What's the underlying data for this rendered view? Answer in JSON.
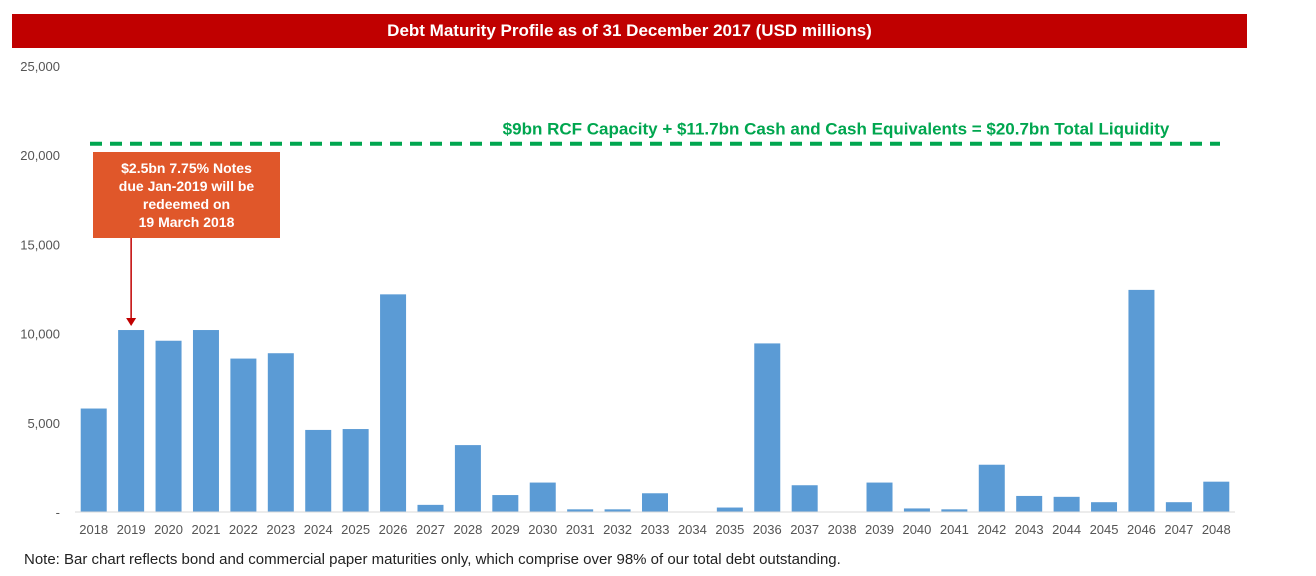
{
  "title": "Debt Maturity Profile as of 31 December 2017 (USD millions)",
  "liquidity_label": "$9bn RCF Capacity + $11.7bn Cash and Cash Equivalents = $20.7bn Total Liquidity",
  "callout_lines": [
    "$2.5bn 7.75% Notes",
    "due Jan-2019 will be",
    "redeemed on",
    "19 March 2018"
  ],
  "note": "Note:  Bar chart reflects bond and commercial paper maturities only, which comprise over 98% of our total debt outstanding.",
  "colors": {
    "bar": "#5b9bd5",
    "title_bg": "#c00000",
    "liquidity": "#00a64f",
    "callout_bg": "#e0572a",
    "arrow": "#c00000"
  },
  "chart_data": {
    "type": "bar",
    "title": "Debt Maturity Profile as of 31 December 2017 (USD millions)",
    "categories": [
      "2018",
      "2019",
      "2020",
      "2021",
      "2022",
      "2023",
      "2024",
      "2025",
      "2026",
      "2027",
      "2028",
      "2029",
      "2030",
      "2031",
      "2032",
      "2033",
      "2034",
      "2035",
      "2036",
      "2037",
      "2038",
      "2039",
      "2040",
      "2041",
      "2042",
      "2043",
      "2044",
      "2045",
      "2046",
      "2047",
      "2048"
    ],
    "values": [
      5800,
      10200,
      9600,
      10200,
      8600,
      8900,
      4600,
      4650,
      12200,
      400,
      3750,
      950,
      1650,
      150,
      150,
      1050,
      0,
      250,
      9450,
      1500,
      0,
      1650,
      200,
      150,
      2650,
      900,
      850,
      550,
      12450,
      550,
      1700
    ],
    "yticks": [
      {
        "value": 0,
        "label": "-"
      },
      {
        "value": 5000,
        "label": "5,000"
      },
      {
        "value": 10000,
        "label": "10,000"
      },
      {
        "value": 15000,
        "label": "15,000"
      },
      {
        "value": 20000,
        "label": "20,000"
      },
      {
        "value": 25000,
        "label": "25,000"
      }
    ],
    "ylim": [
      0,
      25000
    ],
    "reference_line": {
      "value": 20700,
      "label": "$9bn RCF Capacity + $11.7bn Cash and Cash Equivalents = $20.7bn Total Liquidity",
      "style": "dashed"
    },
    "annotation_target": "2019",
    "grid": false,
    "legend": "none"
  }
}
